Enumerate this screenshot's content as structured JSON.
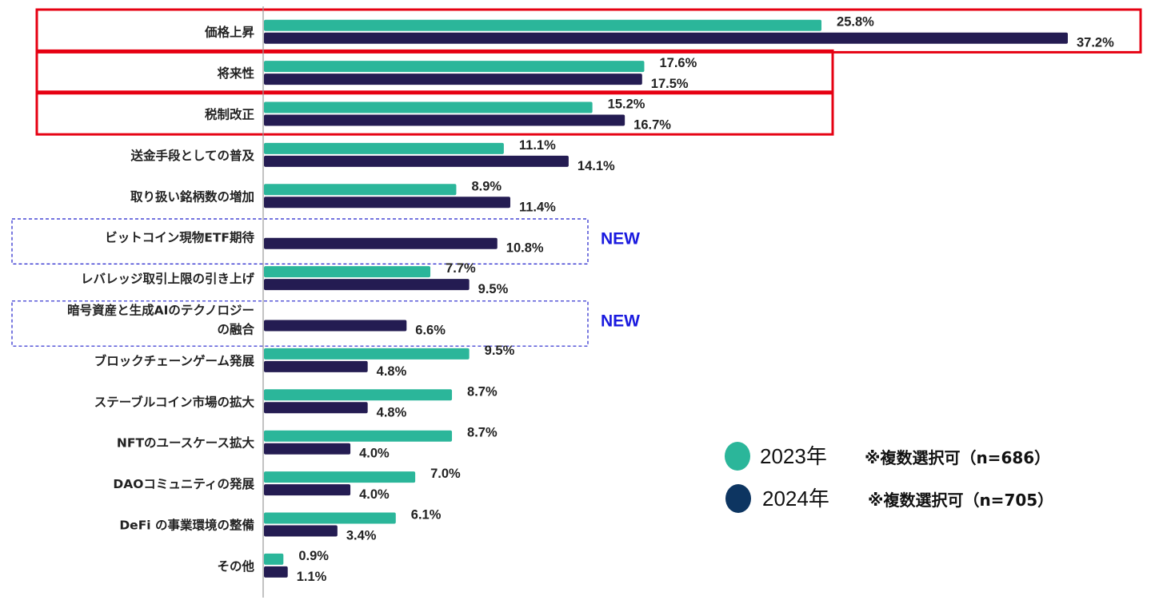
{
  "chart_data": {
    "type": "bar",
    "orientation": "horizontal",
    "categories": [
      [
        "価格上昇"
      ],
      [
        "将来性"
      ],
      [
        "税制改正"
      ],
      [
        "送金手段としての普及"
      ],
      [
        "取り扱い銘柄数の増加"
      ],
      [
        "ビットコイン現物ETF期待"
      ],
      [
        "レバレッジ取引上限の引き上げ"
      ],
      [
        "暗号資産と生成AIのテクノロジー",
        "の融合"
      ],
      [
        "ブロックチェーンゲーム発展"
      ],
      [
        "ステーブルコイン市場の拡大"
      ],
      [
        "NFTのユースケース拡大"
      ],
      [
        "DAOコミュニティの発展"
      ],
      [
        "DeFi の事業環境の整備"
      ],
      [
        "その他"
      ]
    ],
    "series": [
      {
        "name": "2023年",
        "color": "#2bb69a",
        "values": [
          25.8,
          17.6,
          15.2,
          11.1,
          8.9,
          null,
          7.7,
          null,
          9.5,
          8.7,
          8.7,
          7.0,
          6.1,
          0.9
        ],
        "labels": [
          "25.8%",
          "17.6%",
          "15.2%",
          "11.1%",
          "8.9%",
          "",
          "7.7%",
          "",
          "9.5%",
          "8.7%",
          "8.7%",
          "7.0%",
          "6.1%",
          "0.9%"
        ]
      },
      {
        "name": "2024年",
        "color": "#241c52",
        "values": [
          37.2,
          17.5,
          16.7,
          14.1,
          11.4,
          10.8,
          9.5,
          6.6,
          4.8,
          4.8,
          4.0,
          4.0,
          3.4,
          1.1
        ],
        "labels": [
          "37.2%",
          "17.5%",
          "16.7%",
          "14.1%",
          "11.4%",
          "10.8%",
          "9.5%",
          "6.6%",
          "4.8%",
          "4.8%",
          "4.0%",
          "4.0%",
          "3.4%",
          "1.1%"
        ]
      }
    ],
    "xlim": [
      0,
      37.2
    ],
    "grid": false,
    "legend": {
      "position": "right",
      "items": [
        {
          "label": "2023年",
          "note": "※複数選択可（n=686）",
          "color": "#2bb69a"
        },
        {
          "label": "2024年",
          "note": "※複数選択可（n=705）",
          "color": "#0d3561"
        }
      ]
    },
    "annotations": {
      "new_label": "NEW",
      "new_rows": [
        5,
        7
      ],
      "highlight_rows": [
        0,
        1,
        2
      ],
      "highlight_color": "#e60012",
      "new_box_color": "#2222cc"
    }
  }
}
